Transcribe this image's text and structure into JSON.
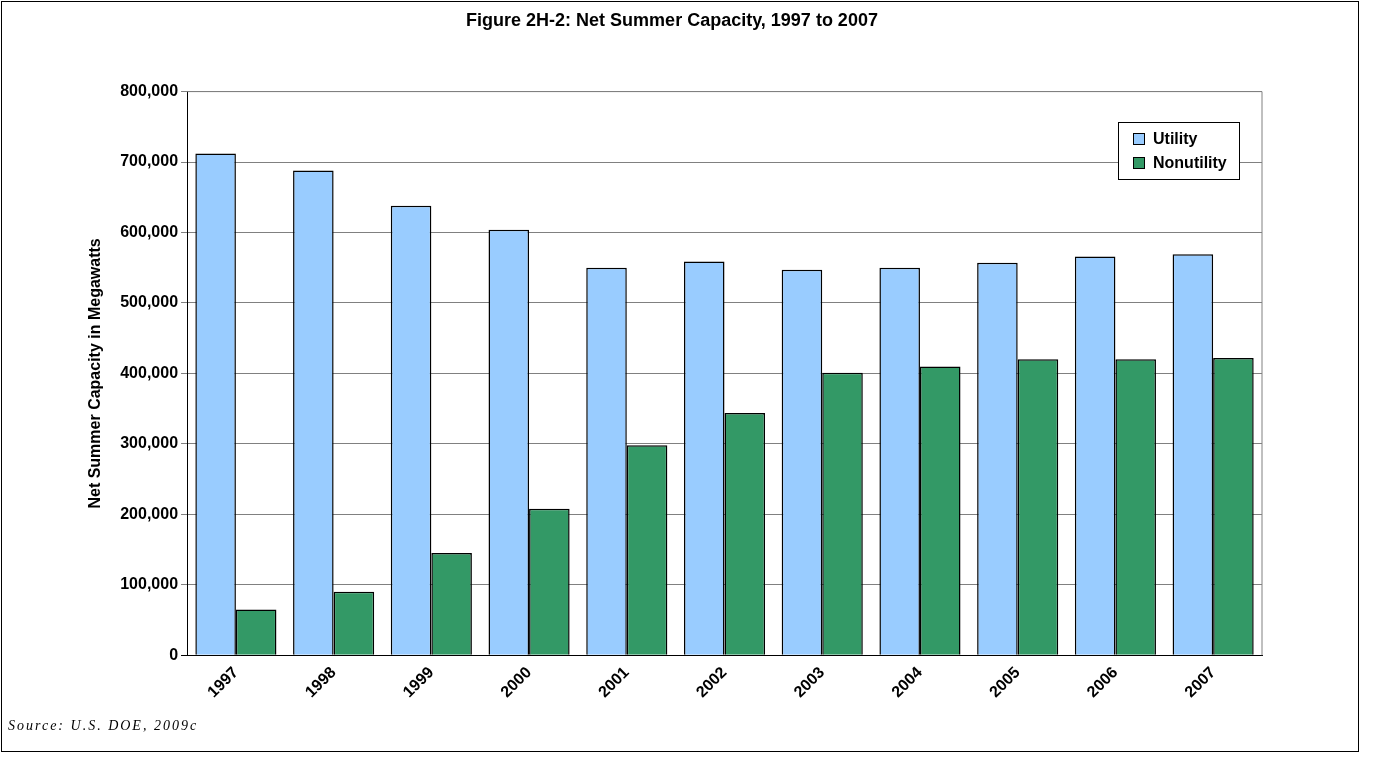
{
  "chart_data": {
    "type": "bar",
    "title": "Figure 2H-2: Net Summer Capacity, 1997 to 2007",
    "ylabel": "Net Summer Capacity in Megawatts",
    "categories": [
      "1997",
      "1998",
      "1999",
      "2000",
      "2001",
      "2002",
      "2003",
      "2004",
      "2005",
      "2006",
      "2007"
    ],
    "series": [
      {
        "name": "Utility",
        "color": "#99ccff",
        "values": [
          712000,
          688000,
          638000,
          604000,
          550000,
          559000,
          547000,
          550000,
          557000,
          566000,
          569000
        ]
      },
      {
        "name": "Nonutility",
        "color": "#339966",
        "values": [
          65000,
          90000,
          145000,
          208000,
          298000,
          344000,
          401000,
          410000,
          420000,
          420000,
          422000
        ]
      }
    ],
    "ylim": [
      0,
      800000
    ],
    "yticks": [
      {
        "value": 0,
        "label": "0"
      },
      {
        "value": 100000,
        "label": "100,000"
      },
      {
        "value": 200000,
        "label": "200,000"
      },
      {
        "value": 300000,
        "label": "300,000"
      },
      {
        "value": 400000,
        "label": "400,000"
      },
      {
        "value": 500000,
        "label": "500,000"
      },
      {
        "value": 600000,
        "label": "600,000"
      },
      {
        "value": 700000,
        "label": "700,000"
      },
      {
        "value": 800000,
        "label": "800,000"
      }
    ],
    "grid": "y",
    "legend": "top right",
    "annotations": [
      "Source: U.S. DOE, 2009c"
    ]
  }
}
